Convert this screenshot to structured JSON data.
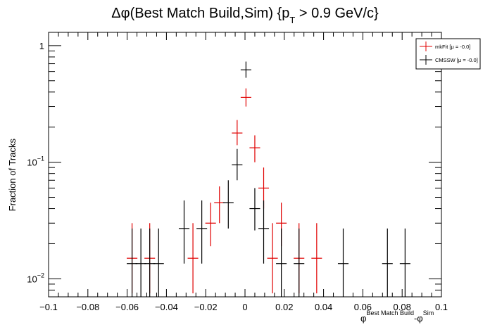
{
  "chart_data": {
    "type": "scatter",
    "title_parts": [
      "Δφ(Best Match Build,Sim) {p",
      "T",
      " > 0.9 GeV/c}"
    ],
    "ylabel": "Fraction of Tracks",
    "xlabel_parts": [
      "φ",
      "Best Match Build",
      "-φ",
      "Sim"
    ],
    "xlim": [
      -0.1,
      0.1
    ],
    "ylim": [
      0.007,
      1.3
    ],
    "yscale": "log",
    "grid": false,
    "legend_position": "top-right",
    "x_ticks": [
      {
        "value": -0.1,
        "label": "−0.1"
      },
      {
        "value": -0.08,
        "label": "−0.08"
      },
      {
        "value": -0.06,
        "label": "−0.06"
      },
      {
        "value": -0.04,
        "label": "−0.04"
      },
      {
        "value": -0.02,
        "label": "−0.02"
      },
      {
        "value": 0,
        "label": "0"
      },
      {
        "value": 0.02,
        "label": "0.02"
      },
      {
        "value": 0.04,
        "label": "0.04"
      },
      {
        "value": 0.06,
        "label": "0.06"
      },
      {
        "value": 0.08,
        "label": "0.08"
      },
      {
        "value": 0.1,
        "label": "0.1"
      }
    ],
    "y_ticks": [
      {
        "value": 1,
        "base": "1",
        "exp": ""
      },
      {
        "value": 0.1,
        "base": "10",
        "exp": "−1"
      },
      {
        "value": 0.01,
        "base": "10",
        "exp": "−2"
      }
    ],
    "bin_halfwidth": 0.0027,
    "series": [
      {
        "name": "mkFit",
        "legend_label": "mkFit  [μ = -0.0]",
        "color": "#e00000",
        "points": [
          {
            "x": -0.0575,
            "y": 0.015,
            "lo": 0.0075,
            "hi": 0.03
          },
          {
            "x": -0.0485,
            "y": 0.015,
            "lo": 0.0075,
            "hi": 0.03
          },
          {
            "x": -0.0265,
            "y": 0.015,
            "lo": 0.0075,
            "hi": 0.03
          },
          {
            "x": -0.0175,
            "y": 0.03,
            "lo": 0.019,
            "hi": 0.045
          },
          {
            "x": -0.013,
            "y": 0.045,
            "lo": 0.03,
            "hi": 0.062
          },
          {
            "x": -0.004,
            "y": 0.178,
            "lo": 0.14,
            "hi": 0.23
          },
          {
            "x": 0.0005,
            "y": 0.36,
            "lo": 0.3,
            "hi": 0.43
          },
          {
            "x": 0.005,
            "y": 0.133,
            "lo": 0.1,
            "hi": 0.17
          },
          {
            "x": 0.0095,
            "y": 0.06,
            "lo": 0.04,
            "hi": 0.09
          },
          {
            "x": 0.014,
            "y": 0.015,
            "lo": 0.0075,
            "hi": 0.03
          },
          {
            "x": 0.0185,
            "y": 0.03,
            "lo": 0.019,
            "hi": 0.045
          },
          {
            "x": 0.0275,
            "y": 0.015,
            "lo": 0.0075,
            "hi": 0.03
          },
          {
            "x": 0.0365,
            "y": 0.015,
            "lo": 0.0075,
            "hi": 0.03
          }
        ]
      },
      {
        "name": "CMSSW",
        "legend_label": "CMSSW  [μ = -0.0]",
        "color": "#000000",
        "points": [
          {
            "x": -0.0575,
            "y": 0.0135,
            "lo": 0.0068,
            "hi": 0.027
          },
          {
            "x": -0.053,
            "y": 0.0135,
            "lo": 0.0068,
            "hi": 0.027
          },
          {
            "x": -0.0485,
            "y": 0.0135,
            "lo": 0.0068,
            "hi": 0.027
          },
          {
            "x": -0.044,
            "y": 0.0135,
            "lo": 0.0068,
            "hi": 0.027
          },
          {
            "x": -0.031,
            "y": 0.027,
            "lo": 0.0135,
            "hi": 0.047
          },
          {
            "x": -0.022,
            "y": 0.027,
            "lo": 0.0135,
            "hi": 0.047
          },
          {
            "x": -0.0085,
            "y": 0.045,
            "lo": 0.027,
            "hi": 0.07
          },
          {
            "x": -0.004,
            "y": 0.095,
            "lo": 0.07,
            "hi": 0.13
          },
          {
            "x": 0.0005,
            "y": 0.62,
            "lo": 0.53,
            "hi": 0.73
          },
          {
            "x": 0.005,
            "y": 0.04,
            "lo": 0.026,
            "hi": 0.06
          },
          {
            "x": 0.0095,
            "y": 0.027,
            "lo": 0.0135,
            "hi": 0.047
          },
          {
            "x": 0.0185,
            "y": 0.0135,
            "lo": 0.0068,
            "hi": 0.027
          },
          {
            "x": 0.0275,
            "y": 0.0135,
            "lo": 0.0068,
            "hi": 0.027
          },
          {
            "x": 0.05,
            "y": 0.0135,
            "lo": 0.0068,
            "hi": 0.027
          },
          {
            "x": 0.0725,
            "y": 0.0135,
            "lo": 0.0068,
            "hi": 0.027
          },
          {
            "x": 0.0815,
            "y": 0.0135,
            "lo": 0.0068,
            "hi": 0.027
          }
        ]
      }
    ]
  }
}
